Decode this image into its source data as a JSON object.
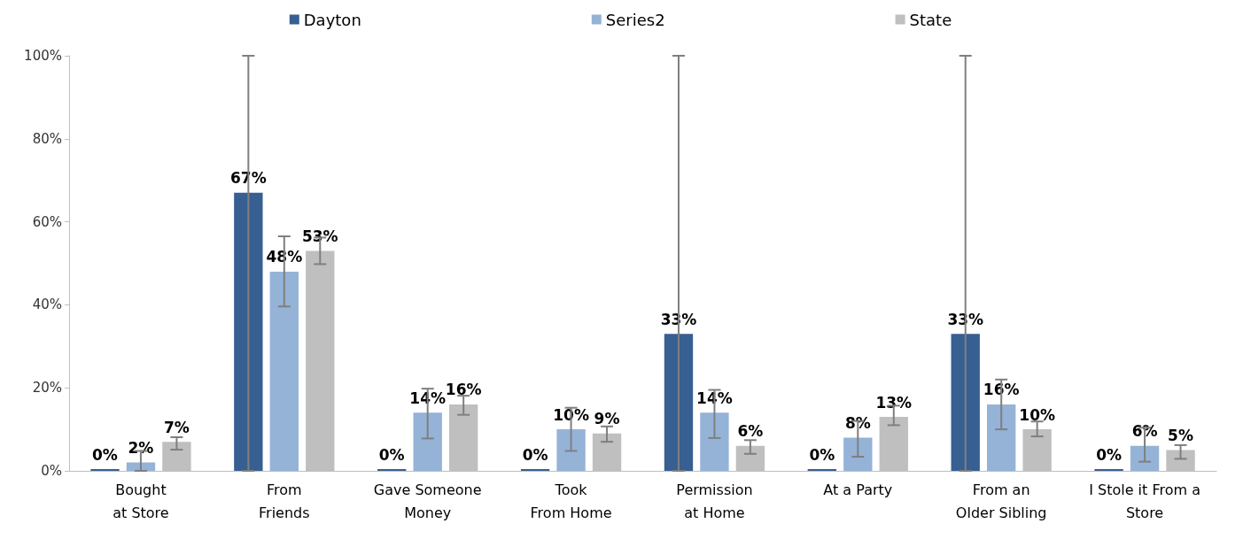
{
  "chart_data": {
    "type": "bar",
    "categories": [
      "Bought\nat Store",
      "From\nFriends",
      "Gave Someone\nMoney",
      "Took\nFrom Home",
      "Permission\nat Home",
      "At a Party",
      "From an\nOlder Sibling",
      "I Stole it From a\nStore"
    ],
    "series": [
      {
        "name": "Dayton",
        "color": "#375f91",
        "values": [
          0,
          67,
          0,
          0,
          33,
          0,
          33,
          0
        ],
        "value_labels": [
          "0%",
          "67%",
          "0%",
          "0%",
          "33%",
          "0%",
          "33%",
          "0%"
        ],
        "errors": [
          null,
          [
            0,
            100
          ],
          null,
          null,
          [
            0,
            100
          ],
          null,
          [
            0,
            100
          ],
          null
        ]
      },
      {
        "name": "Series2",
        "color": "#95b3d7",
        "values": [
          2,
          48,
          14,
          10,
          14,
          8,
          16,
          6
        ],
        "value_labels": [
          "2%",
          "48%",
          "14%",
          "10%",
          "14%",
          "8%",
          "16%",
          "6%"
        ],
        "errors": [
          [
            0,
            4.8
          ],
          [
            39.6,
            56.5
          ],
          [
            7.8,
            19.8
          ],
          [
            4.8,
            15.2
          ],
          [
            7.9,
            19.5
          ],
          [
            3.4,
            12
          ],
          [
            10,
            22
          ],
          [
            2.2,
            10.4
          ]
        ]
      },
      {
        "name": "State",
        "color": "#bfbfbf",
        "values": [
          7,
          53,
          16,
          9,
          6,
          13,
          10,
          5
        ],
        "value_labels": [
          "7%",
          "53%",
          "16%",
          "9%",
          "6%",
          "13%",
          "10%",
          "5%"
        ],
        "errors": [
          [
            5.1,
            8.1
          ],
          [
            49.8,
            56.2
          ],
          [
            13.5,
            18.1
          ],
          [
            7,
            10.7
          ],
          [
            4.1,
            7.4
          ],
          [
            11,
            15.7
          ],
          [
            8.3,
            11.9
          ],
          [
            2.9,
            6.2
          ]
        ]
      }
    ],
    "ylim": [
      0,
      100
    ],
    "yticks": [
      {
        "value": 0,
        "label": "0%"
      },
      {
        "value": 20,
        "label": "20%"
      },
      {
        "value": 40,
        "label": "40%"
      },
      {
        "value": 60,
        "label": "60%"
      },
      {
        "value": 80,
        "label": "80%"
      },
      {
        "value": 100,
        "label": "100%"
      }
    ],
    "legend": "top",
    "grid": false
  }
}
